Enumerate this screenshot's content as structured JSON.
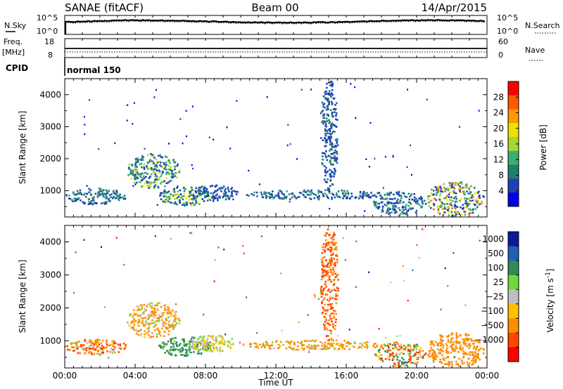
{
  "header": {
    "station": "SANAE (fitACF)",
    "beam": "Beam 00",
    "date": "14/Apr/2015"
  },
  "left_labels": {
    "nsky": "N.Sky",
    "freq": "Freq.",
    "freq_unit": "[MHz]",
    "cpid": "CPID"
  },
  "right_labels": {
    "nsearch": "N.Search",
    "nave": "Nave"
  },
  "top_axes": {
    "nsky_ticks": [
      "10^5",
      "10^0"
    ],
    "nsearch_ticks": [
      "10^5",
      "10^0"
    ],
    "freq_ticks": [
      "18",
      "8"
    ],
    "nave_ticks": [
      "60",
      "0"
    ]
  },
  "cpid_text": "normal 150",
  "colors": {
    "power": [
      "#0000ee",
      "#2040b8",
      "#1f7f6f",
      "#3cb070",
      "#a8d830",
      "#f0e000",
      "#ff9900",
      "#ff5a00",
      "#ff0000"
    ],
    "velocity": [
      "#ff0000",
      "#ff4500",
      "#ff8c00",
      "#ffc000",
      "#bfbfbf",
      "#6fd83c",
      "#2e8b57",
      "#1f5fb4",
      "#0a1a9a"
    ],
    "axis": "#000000",
    "background": "#ffffff"
  },
  "chart_data": [
    {
      "type": "heatmap",
      "title": "Power",
      "ylabel": "Slant Range [km]",
      "xlabel": "",
      "x_range_hours": [
        0,
        24
      ],
      "ylim": [
        180,
        4500
      ],
      "xticks": [
        "00:00",
        "04:00",
        "08:00",
        "12:00",
        "16:00",
        "20:00",
        "00:00"
      ],
      "yticks": [
        1000,
        2000,
        3000,
        4000
      ],
      "colorbar": {
        "label": "Power [dB]",
        "range": [
          0,
          32
        ],
        "ticks": [
          4,
          8,
          12,
          16,
          20,
          24,
          28
        ]
      },
      "features": [
        {
          "hours": [
            0.0,
            3.5
          ],
          "range_km": [
            600,
            1100
          ],
          "power_db": [
            4,
            14
          ]
        },
        {
          "hours": [
            3.5,
            6.5
          ],
          "range_km": [
            1100,
            2200
          ],
          "power_db": [
            6,
            22
          ]
        },
        {
          "hours": [
            5.3,
            8.2
          ],
          "range_km": [
            550,
            1150
          ],
          "power_db": [
            6,
            24
          ]
        },
        {
          "hours": [
            7.0,
            9.8
          ],
          "range_km": [
            700,
            1200
          ],
          "power_db": [
            4,
            12
          ]
        },
        {
          "hours": [
            10.0,
            18.2
          ],
          "range_km": [
            750,
            1050
          ],
          "power_db": [
            4,
            14
          ]
        },
        {
          "hours": [
            14.5,
            15.5
          ],
          "range_km": [
            1000,
            4600
          ],
          "power_db": [
            4,
            12
          ]
        },
        {
          "hours": [
            17.5,
            20.5
          ],
          "range_km": [
            250,
            1000
          ],
          "power_db": [
            4,
            16
          ]
        },
        {
          "hours": [
            20.5,
            23.8
          ],
          "range_km": [
            200,
            1300
          ],
          "power_db": [
            4,
            30
          ]
        }
      ]
    },
    {
      "type": "heatmap",
      "title": "Velocity",
      "ylabel": "Slant Range [km]",
      "xlabel": "Time UT",
      "x_range_hours": [
        0,
        24
      ],
      "ylim": [
        180,
        4500
      ],
      "xticks": [
        "00:00",
        "04:00",
        "08:00",
        "12:00",
        "16:00",
        "20:00",
        "00:00"
      ],
      "yticks": [
        1000,
        2000,
        3000,
        4000
      ],
      "colorbar": {
        "label": "Velocity [m s^-1]",
        "ticks": [
          "1000",
          "500",
          "100",
          "25",
          "−25",
          "−100",
          "−500",
          "−1000"
        ]
      },
      "features": [
        {
          "hours": [
            0.0,
            3.5
          ],
          "range_km": [
            600,
            1100
          ],
          "velocity": [
            -1000,
            100
          ]
        },
        {
          "hours": [
            3.5,
            6.5
          ],
          "range_km": [
            1100,
            2200
          ],
          "velocity": [
            -500,
            100
          ]
        },
        {
          "hours": [
            5.3,
            8.2
          ],
          "range_km": [
            550,
            1150
          ],
          "velocity": [
            25,
            500
          ]
        },
        {
          "hours": [
            7.0,
            9.8
          ],
          "range_km": [
            700,
            1200
          ],
          "velocity": [
            -100,
            100
          ]
        },
        {
          "hours": [
            10.0,
            18.2
          ],
          "range_km": [
            750,
            1050
          ],
          "velocity": [
            -500,
            100
          ]
        },
        {
          "hours": [
            14.5,
            15.5
          ],
          "range_km": [
            1000,
            4600
          ],
          "velocity": [
            -1000,
            -100
          ]
        },
        {
          "hours": [
            17.5,
            20.5
          ],
          "range_km": [
            250,
            1000
          ],
          "velocity": [
            -1000,
            500
          ]
        },
        {
          "hours": [
            20.5,
            23.8
          ],
          "range_km": [
            200,
            1300
          ],
          "velocity": [
            -500,
            -100
          ]
        }
      ]
    }
  ]
}
